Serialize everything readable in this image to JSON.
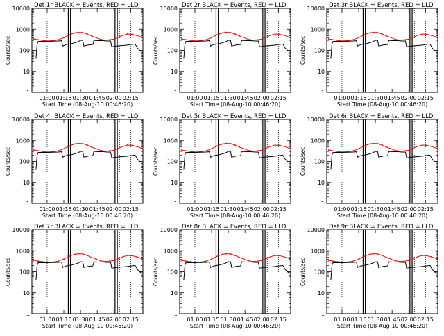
{
  "chart_data": {
    "type": "line",
    "y_scale": "log",
    "ylim": [
      1,
      10000
    ],
    "ylabel": "Counts/sec",
    "xlabel": "Start Time (08-Aug-10 00:46:20)",
    "xticks_a": [
      "01:00",
      "01:15",
      "01:30",
      "01:45",
      "02:00",
      "02:15"
    ],
    "xticks_b": [
      "01:00",
      "01:15",
      "01:30",
      "01:45",
      "02:00",
      "02:15"
    ],
    "yticks": [
      "1",
      "10",
      "100",
      "1000",
      "10000"
    ],
    "xlim": [
      "00:46:20",
      "02:26:00"
    ],
    "colors": {
      "events": "#000000",
      "lld": "#ff0000"
    },
    "legend_text": "BLACK = Events, RED = LLD",
    "dotted_lines": [
      "01:00",
      "02:05",
      "02:15"
    ],
    "solid_lines": [
      "01:19",
      "01:21",
      "02:01",
      "02:03"
    ],
    "panels": [
      {
        "title": "Det 1r BLACK = Events, RED = LLD",
        "xtick_set": "a"
      },
      {
        "title": "Det 2r BLACK = Events, RED = LLD",
        "xtick_set": "b"
      },
      {
        "title": "Det 3r BLACK = Events, RED = LLD",
        "xtick_set": "b"
      },
      {
        "title": "Det 4r BLACK = Events, RED = LLD",
        "xtick_set": "a"
      },
      {
        "title": "Det 5r BLACK = Events, RED = LLD",
        "xtick_set": "b"
      },
      {
        "title": "Det 6r BLACK = Events, RED = LLD",
        "xtick_set": "b"
      },
      {
        "title": "Det 7r BLACK = Events, RED = LLD",
        "xtick_set": "a"
      },
      {
        "title": "Det 8r BLACK = Events, RED = LLD",
        "xtick_set": "b"
      },
      {
        "title": "Det 9r BLACK = Events, RED = LLD",
        "xtick_set": "b"
      }
    ],
    "series": [
      {
        "name": "LLD",
        "points": [
          [
            "00:48",
            350
          ],
          [
            "00:52",
            320
          ],
          [
            "00:56",
            300
          ],
          [
            "01:00",
            280
          ],
          [
            "01:05",
            290
          ],
          [
            "01:10",
            320
          ],
          [
            "01:15",
            400
          ],
          [
            "01:20",
            550
          ],
          [
            "01:25",
            680
          ],
          [
            "01:28",
            720
          ],
          [
            "01:32",
            700
          ],
          [
            "01:36",
            600
          ],
          [
            "01:40",
            480
          ],
          [
            "01:44",
            400
          ],
          [
            "01:48",
            330
          ],
          [
            "01:52",
            310
          ],
          [
            "01:56",
            320
          ],
          [
            "02:00",
            340
          ],
          [
            "02:04",
            420
          ],
          [
            "02:08",
            520
          ],
          [
            "02:12",
            600
          ],
          [
            "02:16",
            580
          ],
          [
            "02:20",
            520
          ],
          [
            "02:25",
            420
          ]
        ]
      },
      {
        "name": "Events",
        "points": [
          [
            "00:50",
            40
          ],
          [
            "00:51",
            200
          ],
          [
            "00:52",
            270
          ],
          [
            "00:56",
            270
          ],
          [
            "01:00",
            270
          ],
          [
            "01:05",
            275
          ],
          [
            "01:10",
            280
          ],
          [
            "01:13",
            290
          ],
          [
            "01:14",
            160
          ],
          [
            "01:17",
            190
          ],
          [
            "01:22",
            210
          ],
          [
            "01:27",
            250
          ],
          [
            "01:30",
            300
          ],
          [
            "01:32",
            300
          ],
          [
            "01:33",
            160
          ],
          [
            "01:37",
            180
          ],
          [
            "01:41",
            190
          ],
          [
            "01:42",
            300
          ],
          [
            "01:46",
            290
          ],
          [
            "01:50",
            290
          ],
          [
            "01:54",
            280
          ],
          [
            "01:57",
            280
          ],
          [
            "01:58",
            150
          ],
          [
            "02:02",
            160
          ],
          [
            "02:08",
            170
          ],
          [
            "02:13",
            180
          ],
          [
            "02:15",
            190
          ],
          [
            "02:19",
            200
          ],
          [
            "02:21",
            130
          ],
          [
            "02:24",
            90
          ]
        ]
      }
    ]
  }
}
